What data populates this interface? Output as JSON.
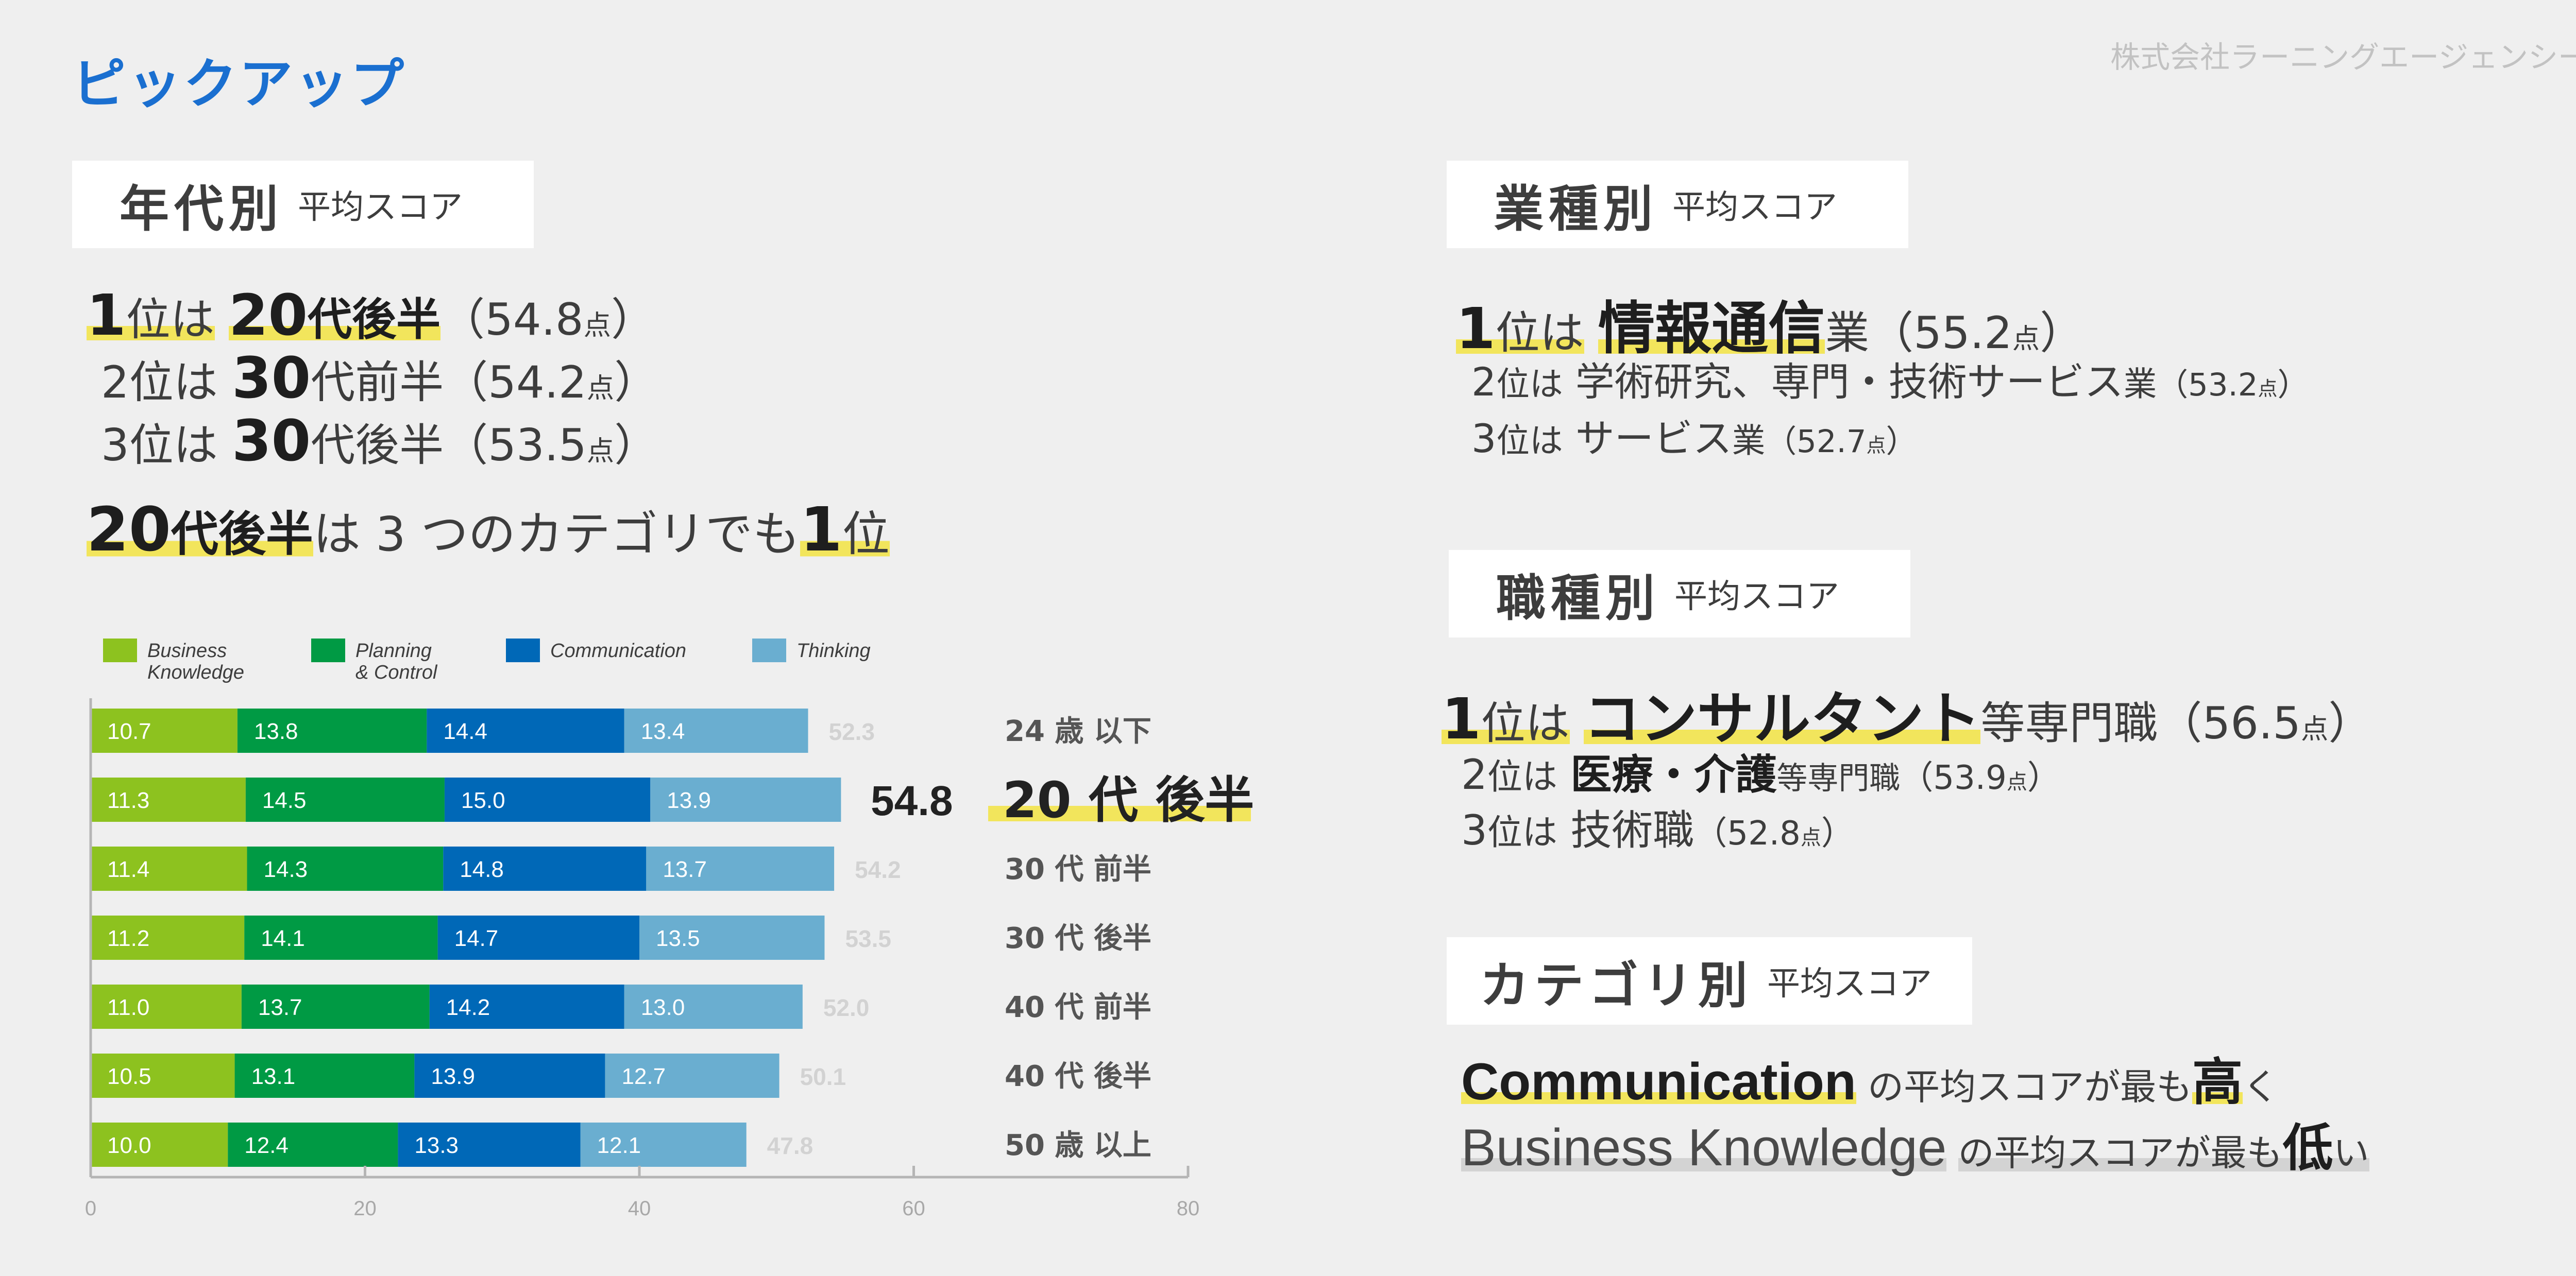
{
  "header": {
    "title": "ピックアップ",
    "company": "株式会社ラーニングエージェンシー"
  },
  "age": {
    "label_main": "年代別",
    "label_sub": "平均スコア",
    "rank1": {
      "num": "1",
      "pre": "位は",
      "group_num": "20",
      "group": "代後半",
      "score": "（54.8",
      "unit": "点",
      "close": "）"
    },
    "rank2": {
      "num": "2",
      "pre": "位は",
      "group_num": "30",
      "group": "代前半",
      "score": "（54.2",
      "unit": "点",
      "close": "）"
    },
    "rank3": {
      "num": "3",
      "pre": "位は",
      "group_num": "30",
      "group": "代後半",
      "score": "（53.5",
      "unit": "点",
      "close": "）"
    },
    "summary": {
      "group_num": "20",
      "group": "代後半",
      "mid": "は 3 つのカテゴリでも",
      "num": "1",
      "tail": "位"
    }
  },
  "industry": {
    "label_main": "業種別",
    "label_sub": "平均スコア",
    "rank1": {
      "num": "1",
      "pre": "位は",
      "name": "情報通信",
      "suffix": "業",
      "score": "（55.2",
      "unit": "点",
      "close": "）"
    },
    "rank2": {
      "num": "2",
      "pre": "位は",
      "name": "学術研究、専門・技術サービス",
      "suffix": "業",
      "score": "（53.2",
      "unit": "点",
      "close": "）"
    },
    "rank3": {
      "num": "3",
      "pre": "位は",
      "name": "サービス",
      "suffix": "業",
      "score": "（52.7",
      "unit": "点",
      "close": "）"
    }
  },
  "job": {
    "label_main": "職種別",
    "label_sub": "平均スコア",
    "rank1": {
      "num": "1",
      "pre": "位は",
      "name": "コンサルタント",
      "suffix": "等専門職",
      "score": "（56.5",
      "unit": "点",
      "close": "）"
    },
    "rank2": {
      "num": "2",
      "pre": "位は",
      "name": "医療・介護",
      "suffix": "等専門職",
      "score": "（53.9",
      "unit": "点",
      "close": "）"
    },
    "rank3": {
      "num": "3",
      "pre": "位は",
      "name": "技術職",
      "suffix": "",
      "score": "（52.8",
      "unit": "点",
      "close": "）"
    }
  },
  "category": {
    "label_main": "カテゴリ別",
    "label_sub": "平均スコア",
    "line1": {
      "name": "Communication",
      "text": "の平均スコアが最も",
      "em": "高",
      "tail": "く"
    },
    "line2": {
      "name": "Business Knowledge",
      "text": "の平均スコアが最も",
      "em": "低",
      "tail": "い"
    }
  },
  "colors": {
    "business": "#8dc21f",
    "planning": "#009a44",
    "communication": "#0068b7",
    "thinking": "#6aaed0",
    "highlight": "#f2e55c",
    "title_blue": "#1a6fd0"
  },
  "chart_data": {
    "type": "bar",
    "orientation": "horizontal",
    "stacked": true,
    "series": [
      {
        "name": "Business\nKnowledge",
        "color": "#8dc21f",
        "values": [
          10.7,
          11.3,
          11.4,
          11.2,
          11.0,
          10.5,
          10.0
        ]
      },
      {
        "name": "Planning\n& Control",
        "color": "#009a44",
        "values": [
          13.8,
          14.5,
          14.3,
          14.1,
          13.7,
          13.1,
          12.4
        ]
      },
      {
        "name": "Communication",
        "color": "#0068b7",
        "values": [
          14.4,
          15.0,
          14.8,
          14.7,
          14.2,
          13.9,
          13.3
        ]
      },
      {
        "name": "Thinking",
        "color": "#6aaed0",
        "values": [
          13.4,
          13.9,
          13.7,
          13.5,
          13.0,
          12.7,
          12.1
        ]
      }
    ],
    "totals": [
      "52.3",
      "54.8",
      "54.2",
      "53.5",
      "52.0",
      "50.1",
      "47.8"
    ],
    "categories": [
      "24 歳 以下",
      "20 代 後半",
      "30 代 前半",
      "30 代 後半",
      "40 代 前半",
      "40 代 後半",
      "50 歳 以上"
    ],
    "highlight_index": 1,
    "xlim": [
      0,
      80
    ],
    "xticks": [
      0,
      20,
      40,
      60,
      80
    ],
    "legend_position": "top",
    "grid": false
  }
}
